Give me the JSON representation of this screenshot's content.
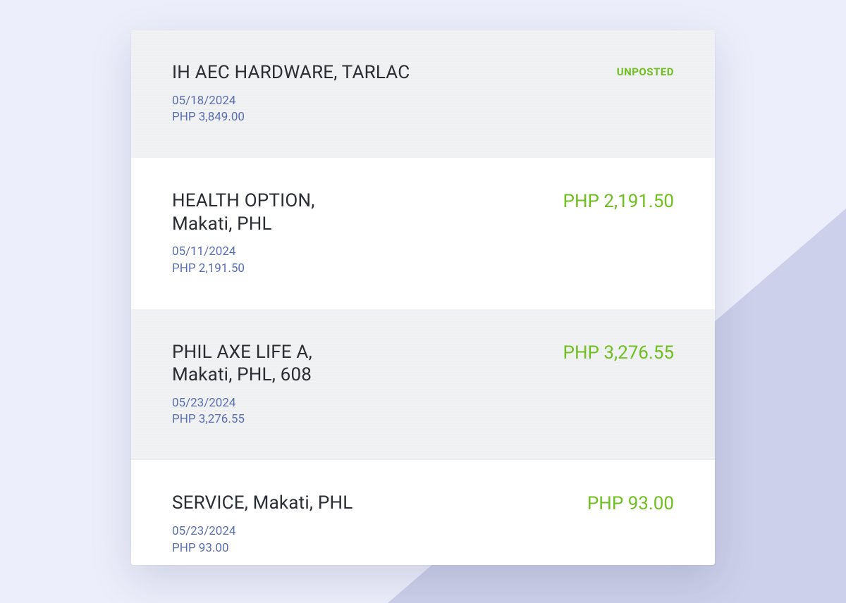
{
  "colors": {
    "background": "#eceefb",
    "shape": "#ccd0ea",
    "card_bg": "#ffffff",
    "row_alt_bg": "#f1f2f4",
    "text_primary": "#2a2d34",
    "text_meta": "#5a6fb0",
    "accent_green": "#6fbf1f"
  },
  "transactions": [
    {
      "merchant_line1": "IH AEC HARDWARE, TARLAC",
      "merchant_line2": "",
      "date": "05/18/2024",
      "amount_meta": "PHP 3,849.00",
      "right_type": "status",
      "right_value": "UNPOSTED"
    },
    {
      "merchant_line1": "HEALTH OPTION,",
      "merchant_line2": "Makati, PHL",
      "date": "05/11/2024",
      "amount_meta": "PHP 2,191.50",
      "right_type": "amount",
      "right_value": "PHP 2,191.50"
    },
    {
      "merchant_line1": "PHIL AXE LIFE A,",
      "merchant_line2": "Makati, PHL, 608",
      "date": "05/23/2024",
      "amount_meta": "PHP 3,276.55",
      "right_type": "amount",
      "right_value": "PHP 3,276.55"
    },
    {
      "merchant_line1": "SERVICE, Makati, PHL",
      "merchant_line2": "",
      "date": "05/23/2024",
      "amount_meta": "PHP 93.00",
      "right_type": "amount",
      "right_value": "PHP 93.00"
    }
  ]
}
